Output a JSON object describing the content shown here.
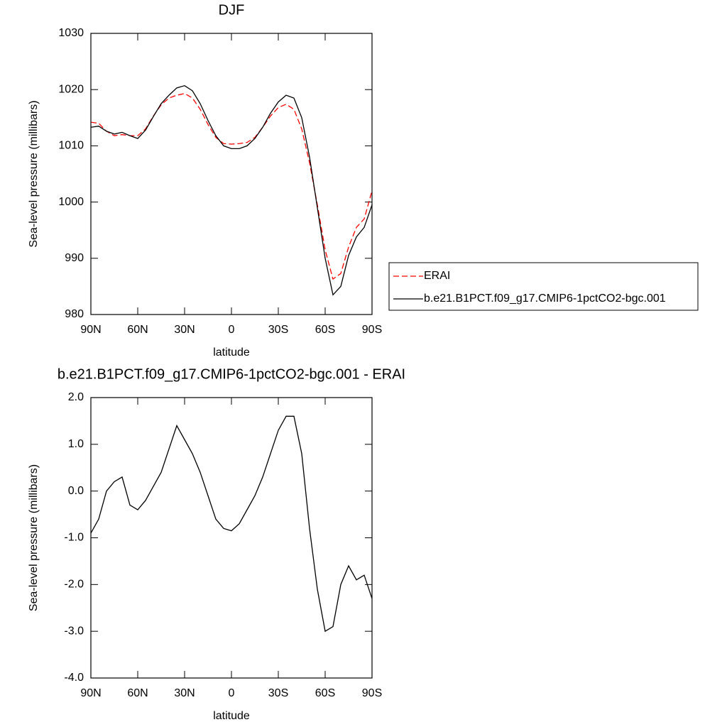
{
  "chart_data": [
    {
      "type": "line",
      "title": "DJF",
      "x_label": "latitude",
      "y_label": "Sea-level pressure (millibars)",
      "x": [
        90,
        85,
        80,
        75,
        70,
        65,
        60,
        55,
        50,
        45,
        40,
        35,
        30,
        25,
        20,
        15,
        10,
        5,
        0,
        -5,
        -10,
        -15,
        -20,
        -25,
        -30,
        -35,
        -40,
        -45,
        -50,
        -55,
        -60,
        -65,
        -70,
        -75,
        -80,
        -85,
        -90
      ],
      "series": [
        {
          "name": "ERAI",
          "color": "#ff0000",
          "line_style": "dashed",
          "values": [
            1014.2,
            1014.0,
            1012.6,
            1011.8,
            1012.0,
            1011.8,
            1011.8,
            1013.0,
            1015.3,
            1017.3,
            1018.5,
            1019.0,
            1019.3,
            1018.5,
            1016.5,
            1013.8,
            1011.5,
            1010.4,
            1010.3,
            1010.4,
            1010.6,
            1011.5,
            1013.3,
            1015.3,
            1016.8,
            1017.4,
            1016.5,
            1013.0,
            1007.0,
            999.5,
            991.5,
            986.3,
            987.3,
            992.0,
            995.5,
            997.0,
            1002.0
          ]
        },
        {
          "name": "b.e21.B1PCT.f09_g17.CMIP6-1pctCO2-bgc.001",
          "color": "#000000",
          "line_style": "solid",
          "values": [
            1013.3,
            1013.5,
            1012.6,
            1012.1,
            1012.4,
            1011.8,
            1011.3,
            1012.8,
            1015.2,
            1017.5,
            1019.0,
            1020.3,
            1020.7,
            1019.8,
            1017.5,
            1014.5,
            1011.8,
            1010.0,
            1009.5,
            1009.5,
            1010.0,
            1011.3,
            1013.3,
            1015.8,
            1017.8,
            1019.0,
            1018.5,
            1015.0,
            1008.0,
            999.0,
            990.0,
            983.5,
            985.0,
            990.5,
            993.8,
            995.5,
            999.5
          ]
        }
      ],
      "xlim": [
        90,
        -90
      ],
      "xticks": [
        {
          "value": 90,
          "label": "90N"
        },
        {
          "value": 60,
          "label": "60N"
        },
        {
          "value": 30,
          "label": "30N"
        },
        0,
        {
          "value": -30,
          "label": "30S"
        },
        {
          "value": -60,
          "label": "60S"
        },
        {
          "value": -90,
          "label": "90S"
        }
      ],
      "ylim": [
        980,
        1030
      ],
      "yticks": [
        980,
        990,
        1000,
        1010,
        1020,
        1030
      ],
      "legend": "right"
    },
    {
      "type": "line",
      "title": "b.e21.B1PCT.f09_g17.CMIP6-1pctCO2-bgc.001 - ERAI",
      "x_label": "latitude",
      "y_label": "Sea-level pressure (millibars)",
      "x": [
        90,
        85,
        80,
        75,
        70,
        65,
        60,
        55,
        50,
        45,
        40,
        35,
        30,
        25,
        20,
        15,
        10,
        5,
        0,
        -5,
        -10,
        -15,
        -20,
        -25,
        -30,
        -35,
        -40,
        -45,
        -50,
        -55,
        -60,
        -65,
        -70,
        -75,
        -80,
        -85,
        -90
      ],
      "values": [
        -0.9,
        -0.6,
        0.0,
        0.2,
        0.3,
        -0.3,
        -0.4,
        -0.2,
        0.1,
        0.4,
        0.9,
        1.4,
        1.1,
        0.8,
        0.4,
        -0.1,
        -0.6,
        -0.8,
        -0.85,
        -0.7,
        -0.4,
        -0.1,
        0.3,
        0.8,
        1.3,
        1.6,
        1.6,
        0.8,
        -0.8,
        -2.1,
        -3.0,
        -2.9,
        -2.0,
        -1.6,
        -1.9,
        -1.8,
        -2.3
      ],
      "color": "#000000",
      "xlim": [
        90,
        -90
      ],
      "xticks": [
        {
          "value": 90,
          "label": "90N"
        },
        {
          "value": 60,
          "label": "60N"
        },
        {
          "value": 30,
          "label": "30N"
        },
        0,
        {
          "value": -30,
          "label": "30S"
        },
        {
          "value": -60,
          "label": "60S"
        },
        {
          "value": -90,
          "label": "90S"
        }
      ],
      "ylim": [
        -4,
        2
      ],
      "yticks": [
        {
          "value": -4,
          "label": "-4.0"
        },
        {
          "value": -3,
          "label": "-3.0"
        },
        {
          "value": -2,
          "label": "-2.0"
        },
        {
          "value": -1,
          "label": "-1.0"
        },
        {
          "value": 0,
          "label": "0.0"
        },
        {
          "value": 1,
          "label": "1.0"
        },
        {
          "value": 2,
          "label": "2.0"
        }
      ]
    }
  ]
}
